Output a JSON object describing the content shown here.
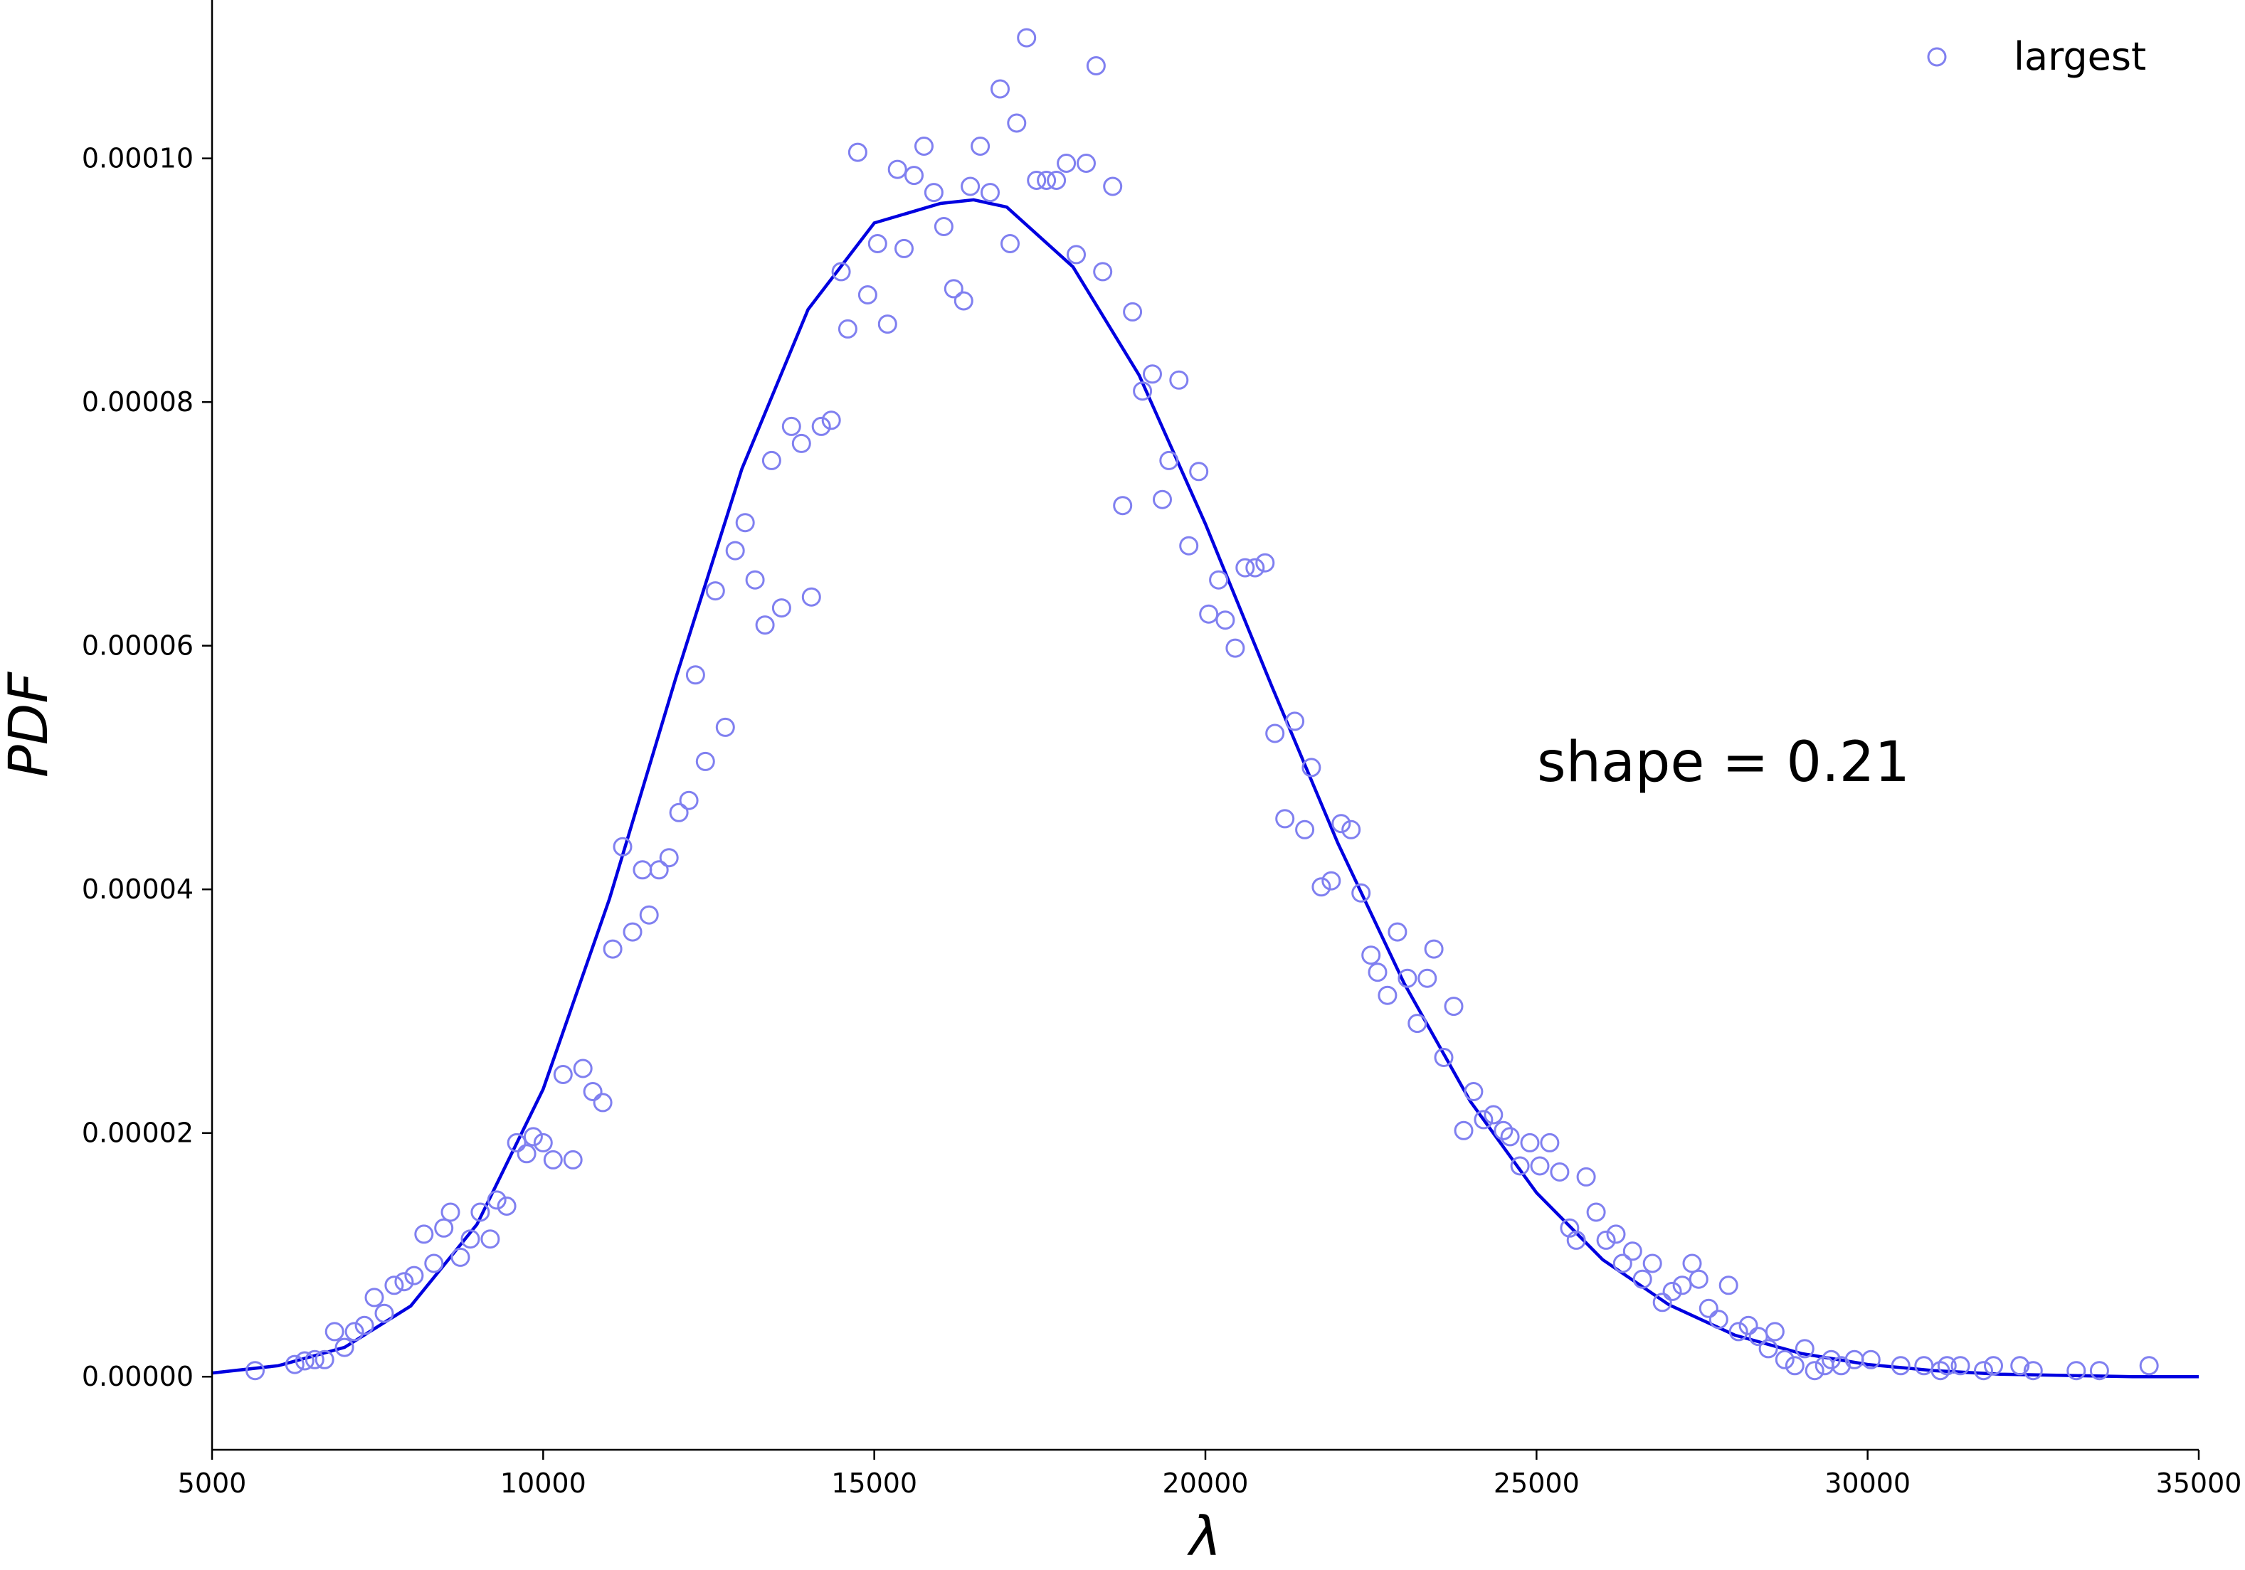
{
  "chart_data": {
    "type": "scatter",
    "xlabel": "λ",
    "ylabel": "PDF",
    "xlim": [
      5000,
      35000
    ],
    "ylim": [
      -6e-06,
      0.000113
    ],
    "xticks": [
      5000,
      10000,
      15000,
      20000,
      25000,
      30000,
      35000
    ],
    "xtick_labels": [
      "5000",
      "10000",
      "15000",
      "20000",
      "25000",
      "30000",
      "35000"
    ],
    "yticks": [
      0.0,
      2e-05,
      4e-05,
      6e-05,
      8e-05,
      0.0001
    ],
    "ytick_labels": [
      "0.00000",
      "0.00002",
      "0.00004",
      "0.00006",
      "0.00008",
      "0.00010"
    ],
    "grid": false,
    "legend_position": "top-right",
    "annotation": "shape = 0.21",
    "colors": {
      "markers": "#8080f0",
      "fit_line": "#0000e0",
      "axes": "#000000"
    },
    "series": [
      {
        "name": "largest",
        "kind": "scatter",
        "marker": "open-circle",
        "points": [
          [
            5650,
            5e-07
          ],
          [
            6250,
            1e-06
          ],
          [
            6400,
            1.3e-06
          ],
          [
            6550,
            1.4e-06
          ],
          [
            6700,
            1.4e-06
          ],
          [
            6850,
            3.7e-06
          ],
          [
            7000,
            2.4e-06
          ],
          [
            7150,
            3.7e-06
          ],
          [
            7300,
            4.2e-06
          ],
          [
            7450,
            6.5e-06
          ],
          [
            7600,
            5.2e-06
          ],
          [
            7750,
            7.5e-06
          ],
          [
            7900,
            7.8e-06
          ],
          [
            8050,
            8.3e-06
          ],
          [
            8200,
            1.17e-05
          ],
          [
            8350,
            9.3e-06
          ],
          [
            8500,
            1.22e-05
          ],
          [
            8600,
            1.35e-05
          ],
          [
            8750,
            9.8e-06
          ],
          [
            8900,
            1.13e-05
          ],
          [
            9050,
            1.35e-05
          ],
          [
            9200,
            1.13e-05
          ],
          [
            9300,
            1.45e-05
          ],
          [
            9450,
            1.4e-05
          ],
          [
            9600,
            1.92e-05
          ],
          [
            9750,
            1.83e-05
          ],
          [
            9850,
            1.97e-05
          ],
          [
            10000,
            1.92e-05
          ],
          [
            10150,
            1.78e-05
          ],
          [
            10300,
            2.48e-05
          ],
          [
            10450,
            1.78e-05
          ],
          [
            10600,
            2.53e-05
          ],
          [
            10750,
            2.34e-05
          ],
          [
            10900,
            2.25e-05
          ],
          [
            11050,
            3.51e-05
          ],
          [
            11200,
            4.35e-05
          ],
          [
            11350,
            3.65e-05
          ],
          [
            11500,
            4.16e-05
          ],
          [
            11600,
            3.79e-05
          ],
          [
            11750,
            4.16e-05
          ],
          [
            11900,
            4.26e-05
          ],
          [
            12050,
            4.63e-05
          ],
          [
            12200,
            4.73e-05
          ],
          [
            12300,
            5.76e-05
          ],
          [
            12450,
            5.05e-05
          ],
          [
            12600,
            6.45e-05
          ],
          [
            12750,
            5.33e-05
          ],
          [
            12900,
            6.78e-05
          ],
          [
            13050,
            7.01e-05
          ],
          [
            13200,
            6.54e-05
          ],
          [
            13350,
            6.17e-05
          ],
          [
            13450,
            7.52e-05
          ],
          [
            13600,
            6.31e-05
          ],
          [
            13750,
            7.8e-05
          ],
          [
            13900,
            7.66e-05
          ],
          [
            14050,
            6.4e-05
          ],
          [
            14200,
            7.8e-05
          ],
          [
            14350,
            7.85e-05
          ],
          [
            14500,
            9.07e-05
          ],
          [
            14600,
            8.6e-05
          ],
          [
            14750,
            0.0001005
          ],
          [
            14900,
            8.88e-05
          ],
          [
            15050,
            9.3e-05
          ],
          [
            15200,
            8.64e-05
          ],
          [
            15350,
            9.91e-05
          ],
          [
            15450,
            9.26e-05
          ],
          [
            15600,
            9.86e-05
          ],
          [
            15750,
            0.000101
          ],
          [
            15900,
            9.72e-05
          ],
          [
            16050,
            9.44e-05
          ],
          [
            16200,
            8.93e-05
          ],
          [
            16350,
            8.83e-05
          ],
          [
            16450,
            9.77e-05
          ],
          [
            16600,
            0.000101
          ],
          [
            16750,
            9.72e-05
          ],
          [
            16900,
            0.0001057
          ],
          [
            17050,
            9.3e-05
          ],
          [
            17150,
            0.0001029
          ],
          [
            17300,
            0.0001099
          ],
          [
            17450,
            9.82e-05
          ],
          [
            17600,
            9.82e-05
          ],
          [
            17750,
            9.82e-05
          ],
          [
            17900,
            9.96e-05
          ],
          [
            18050,
            9.21e-05
          ],
          [
            18200,
            9.96e-05
          ],
          [
            18350,
            0.0001076
          ],
          [
            18450,
            9.07e-05
          ],
          [
            18600,
            9.77e-05
          ],
          [
            18750,
            7.15e-05
          ],
          [
            18900,
            8.74e-05
          ],
          [
            19050,
            8.09e-05
          ],
          [
            19200,
            8.23e-05
          ],
          [
            19350,
            7.2e-05
          ],
          [
            19450,
            7.52e-05
          ],
          [
            19600,
            8.18e-05
          ],
          [
            19750,
            6.82e-05
          ],
          [
            19900,
            7.43e-05
          ],
          [
            20050,
            6.26e-05
          ],
          [
            20200,
            6.54e-05
          ],
          [
            20300,
            6.21e-05
          ],
          [
            20450,
            5.98e-05
          ],
          [
            20600,
            6.64e-05
          ],
          [
            20750,
            6.64e-05
          ],
          [
            20900,
            6.68e-05
          ],
          [
            21050,
            5.28e-05
          ],
          [
            21200,
            4.58e-05
          ],
          [
            21350,
            5.38e-05
          ],
          [
            21500,
            4.49e-05
          ],
          [
            21600,
            5e-05
          ],
          [
            21750,
            4.02e-05
          ],
          [
            21900,
            4.07e-05
          ],
          [
            22050,
            4.54e-05
          ],
          [
            22200,
            4.49e-05
          ],
          [
            22350,
            3.97e-05
          ],
          [
            22500,
            3.46e-05
          ],
          [
            22600,
            3.32e-05
          ],
          [
            22750,
            3.13e-05
          ],
          [
            22900,
            3.65e-05
          ],
          [
            23050,
            3.27e-05
          ],
          [
            23200,
            2.9e-05
          ],
          [
            23350,
            3.27e-05
          ],
          [
            23450,
            3.51e-05
          ],
          [
            23600,
            2.62e-05
          ],
          [
            23750,
            3.04e-05
          ],
          [
            23900,
            2.02e-05
          ],
          [
            24050,
            2.34e-05
          ],
          [
            24200,
            2.11e-05
          ],
          [
            24350,
            2.15e-05
          ],
          [
            24500,
            2.02e-05
          ],
          [
            24600,
            1.97e-05
          ],
          [
            24750,
            1.73e-05
          ],
          [
            24900,
            1.92e-05
          ],
          [
            25050,
            1.73e-05
          ],
          [
            25200,
            1.92e-05
          ],
          [
            25350,
            1.68e-05
          ],
          [
            25500,
            1.22e-05
          ],
          [
            25600,
            1.12e-05
          ],
          [
            25750,
            1.64e-05
          ],
          [
            25900,
            1.35e-05
          ],
          [
            26050,
            1.12e-05
          ],
          [
            26200,
            1.17e-05
          ],
          [
            26300,
            9.3e-06
          ],
          [
            26450,
            1.03e-05
          ],
          [
            26600,
            8e-06
          ],
          [
            26750,
            9.3e-06
          ],
          [
            26900,
            6.1e-06
          ],
          [
            27050,
            7e-06
          ],
          [
            27200,
            7.5e-06
          ],
          [
            27350,
            9.3e-06
          ],
          [
            27450,
            8e-06
          ],
          [
            27600,
            5.6e-06
          ],
          [
            27750,
            4.7e-06
          ],
          [
            27900,
            7.5e-06
          ],
          [
            28050,
            3.7e-06
          ],
          [
            28200,
            4.2e-06
          ],
          [
            28350,
            3.3e-06
          ],
          [
            28500,
            2.3e-06
          ],
          [
            28600,
            3.7e-06
          ],
          [
            28750,
            1.4e-06
          ],
          [
            28900,
            9e-07
          ],
          [
            29050,
            2.3e-06
          ],
          [
            29200,
            5e-07
          ],
          [
            29350,
            9e-07
          ],
          [
            29450,
            1.4e-06
          ],
          [
            29600,
            9e-07
          ],
          [
            29800,
            1.4e-06
          ],
          [
            30050,
            1.4e-06
          ],
          [
            30500,
            9e-07
          ],
          [
            30850,
            9e-07
          ],
          [
            31100,
            5e-07
          ],
          [
            31200,
            9e-07
          ],
          [
            31400,
            9e-07
          ],
          [
            31750,
            5e-07
          ],
          [
            31900,
            9e-07
          ],
          [
            32300,
            9e-07
          ],
          [
            32500,
            5e-07
          ],
          [
            33150,
            5e-07
          ],
          [
            33500,
            5e-07
          ],
          [
            34250,
            9e-07
          ]
        ]
      },
      {
        "kind": "line",
        "points": [
          [
            5000,
            3e-07
          ],
          [
            6000,
            9e-07
          ],
          [
            7000,
            2.4e-06
          ],
          [
            8000,
            5.8e-06
          ],
          [
            9000,
            1.25e-05
          ],
          [
            10000,
            2.36e-05
          ],
          [
            11000,
            3.92e-05
          ],
          [
            12000,
            5.73e-05
          ],
          [
            13000,
            7.45e-05
          ],
          [
            14000,
            8.76e-05
          ],
          [
            15000,
            9.47e-05
          ],
          [
            16000,
            9.63e-05
          ],
          [
            16500,
            9.66e-05
          ],
          [
            17000,
            9.6e-05
          ],
          [
            18000,
            9.11e-05
          ],
          [
            19000,
            8.22e-05
          ],
          [
            20000,
            7e-05
          ],
          [
            21000,
            5.67e-05
          ],
          [
            22000,
            4.38e-05
          ],
          [
            23000,
            3.23e-05
          ],
          [
            24000,
            2.26e-05
          ],
          [
            25000,
            1.51e-05
          ],
          [
            26000,
            9.6e-06
          ],
          [
            27000,
            5.9e-06
          ],
          [
            28000,
            3.4e-06
          ],
          [
            29000,
            1.9e-06
          ],
          [
            30000,
            1e-06
          ],
          [
            31000,
            5e-07
          ],
          [
            32000,
            2e-07
          ],
          [
            33000,
            1e-07
          ],
          [
            34000,
            0.0
          ],
          [
            35000,
            0.0
          ]
        ]
      }
    ]
  }
}
